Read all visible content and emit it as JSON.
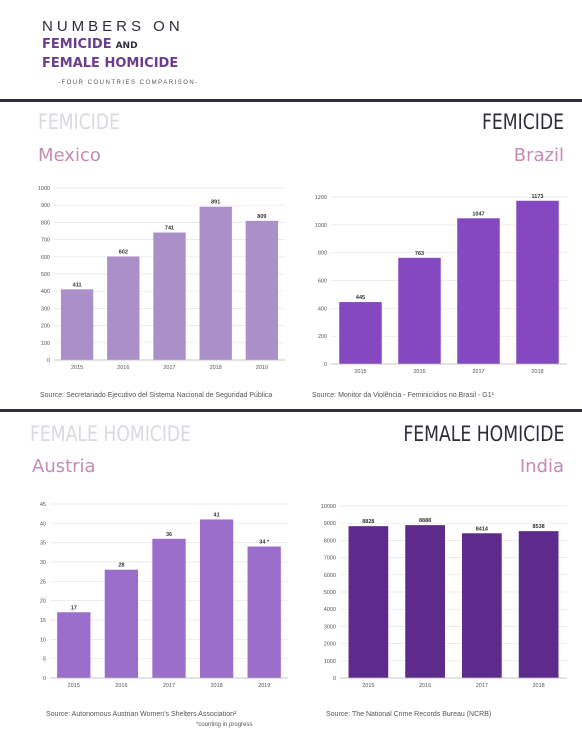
{
  "header": {
    "line1": "NUMBERS ON",
    "line2": "FEMICIDE",
    "line2_and": "AND",
    "line3": "FEMALE HOMICIDE",
    "subtitle": "-FOUR COUNTRIES COMPARISON-"
  },
  "sections": {
    "femicide_light": "FEMICIDE",
    "femicide_dark": "FEMICIDE",
    "homicide_light": "FEMALE HOMICIDE",
    "homicide_dark": "FEMALE HOMICIDE"
  },
  "countries": {
    "mexico": "Mexico",
    "brazil": "Brazil",
    "austria": "Austria",
    "india": "India"
  },
  "sources": {
    "mexico": "Source: Secretariado Ejecutivo del Sistema Nacional de Seguridad Pública",
    "brazil": "Source: Monitor da Violência - Feminicídios no Brasil - G1¹",
    "austria": "Source: Autonomous Austrian Women's Shelters Association²",
    "austria_note": "*counting in progress",
    "india": "Source: The National Crime Records Bureau (NCRB)"
  },
  "colors": {
    "mexico": "#ab8fc9",
    "brazil": "#8548c0",
    "austria": "#9b6ecb",
    "india": "#5e2b8c",
    "grid": "#e4e4e8",
    "tick": "#555555"
  },
  "chart_data": [
    {
      "id": "mexico",
      "type": "bar",
      "categories": [
        "2015",
        "2016",
        "2017",
        "2018",
        "2019"
      ],
      "values": [
        411,
        602,
        741,
        891,
        809
      ],
      "value_labels": [
        "411",
        "602",
        "741",
        "891",
        "809"
      ],
      "ylim": [
        0,
        1000
      ],
      "yticks": [
        0,
        100,
        200,
        300,
        400,
        500,
        600,
        700,
        800,
        900,
        1000
      ],
      "grid": true
    },
    {
      "id": "brazil",
      "type": "bar",
      "categories": [
        "2015",
        "2016",
        "2017",
        "2018"
      ],
      "values": [
        445,
        763,
        1047,
        1173
      ],
      "value_labels": [
        "445",
        "763",
        "1047",
        "1173"
      ],
      "ylim": [
        0,
        1200
      ],
      "yticks": [
        0,
        200,
        400,
        600,
        800,
        1000,
        1200
      ],
      "grid": true
    },
    {
      "id": "austria",
      "type": "bar",
      "categories": [
        "2015",
        "2016",
        "2017",
        "2018",
        "2019"
      ],
      "values": [
        17,
        28,
        36,
        41,
        34
      ],
      "value_labels": [
        "17",
        "28",
        "36",
        "41",
        "34 *"
      ],
      "ylim": [
        0,
        45
      ],
      "yticks": [
        0,
        5,
        10,
        15,
        20,
        25,
        30,
        35,
        40,
        45
      ],
      "grid": true
    },
    {
      "id": "india",
      "type": "bar",
      "categories": [
        "2015",
        "2016",
        "2017",
        "2018"
      ],
      "values": [
        8828,
        8888,
        8414,
        8538
      ],
      "value_labels": [
        "8828",
        "8888",
        "8414",
        "8538"
      ],
      "ylim": [
        0,
        10000
      ],
      "yticks": [
        0,
        1000,
        2000,
        3000,
        4000,
        5000,
        6000,
        7000,
        8000,
        9000,
        10000
      ],
      "grid": true
    }
  ]
}
